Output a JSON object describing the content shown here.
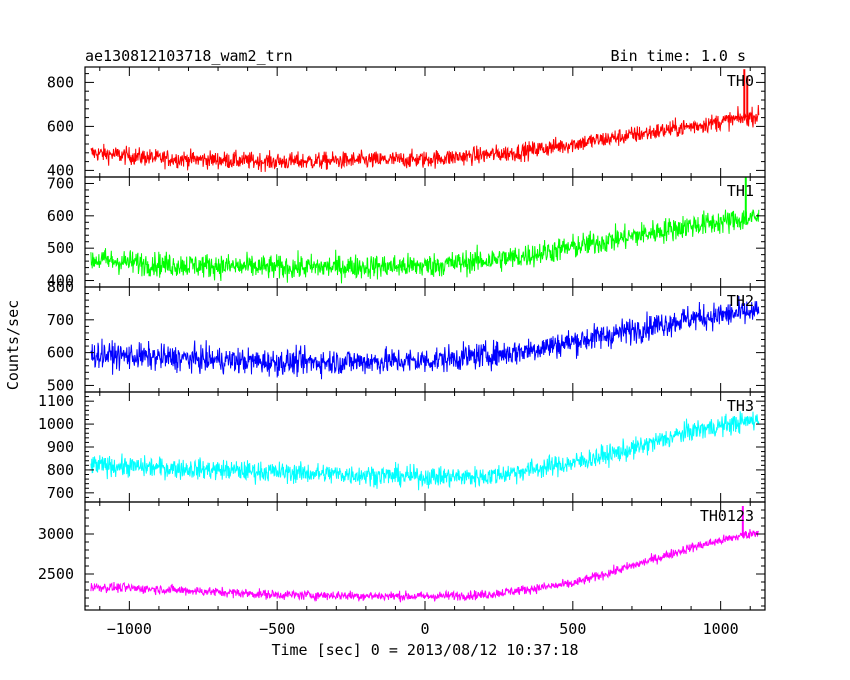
{
  "chart_data": {
    "type": "line",
    "title": "ae130812103718_wam2_trn",
    "subtitle": "Bin time: 1.0 s",
    "xlabel": "Time [sec] 0 = 2013/08/12 10:37:18",
    "ylabel": "Counts/sec",
    "xlim": [
      -1150,
      1150
    ],
    "x_ticks": [
      -1000,
      -500,
      0,
      500,
      1000
    ],
    "x_tick_labels": [
      "−1000",
      "−500",
      "0",
      "500",
      "1000"
    ],
    "x_data_range": [
      -1130,
      1130
    ],
    "grid": false,
    "panels": [
      {
        "name": "TH0",
        "color": "#ff0000",
        "ylim": [
          370,
          870
        ],
        "ticks": [
          400,
          600,
          800
        ],
        "tick_labels": [
          "400",
          "600",
          "800"
        ],
        "trend": [
          [
            -1130,
            480
          ],
          [
            -900,
            455
          ],
          [
            -500,
            440
          ],
          [
            0,
            450
          ],
          [
            300,
            480
          ],
          [
            600,
            540
          ],
          [
            900,
            600
          ],
          [
            1130,
            650
          ]
        ],
        "noise": 40,
        "spikes": [
          [
            1080,
            860
          ],
          [
            1090,
            830
          ]
        ]
      },
      {
        "name": "TH1",
        "color": "#00ff00",
        "ylim": [
          380,
          720
        ],
        "ticks": [
          400,
          500,
          600,
          700
        ],
        "tick_labels": [
          "400",
          "500",
          "600",
          "700"
        ],
        "trend": [
          [
            -1130,
            465
          ],
          [
            -900,
            450
          ],
          [
            -500,
            440
          ],
          [
            0,
            445
          ],
          [
            300,
            470
          ],
          [
            600,
            520
          ],
          [
            900,
            570
          ],
          [
            1130,
            595
          ]
        ],
        "noise": 38,
        "spikes": [
          [
            1085,
            725
          ]
        ]
      },
      {
        "name": "TH2",
        "color": "#0000ff",
        "ylim": [
          480,
          800
        ],
        "ticks": [
          500,
          600,
          700,
          800
        ],
        "tick_labels": [
          "500",
          "600",
          "700",
          "800"
        ],
        "trend": [
          [
            -1130,
            595
          ],
          [
            -900,
            585
          ],
          [
            -500,
            570
          ],
          [
            0,
            575
          ],
          [
            300,
            600
          ],
          [
            600,
            650
          ],
          [
            900,
            705
          ],
          [
            1130,
            725
          ]
        ],
        "noise": 40,
        "spikes": []
      },
      {
        "name": "TH3",
        "color": "#00ffff",
        "ylim": [
          660,
          1140
        ],
        "ticks": [
          700,
          800,
          900,
          1000,
          1100
        ],
        "tick_labels": [
          "700",
          "800",
          "900",
          "1000",
          "1100"
        ],
        "trend": [
          [
            -1130,
            820
          ],
          [
            -900,
            810
          ],
          [
            -500,
            790
          ],
          [
            0,
            770
          ],
          [
            200,
            770
          ],
          [
            500,
            830
          ],
          [
            700,
            890
          ],
          [
            900,
            970
          ],
          [
            1130,
            1020
          ]
        ],
        "noise": 45,
        "spikes": []
      },
      {
        "name": "TH0123",
        "color": "#ff00ff",
        "ylim": [
          2050,
          3400
        ],
        "ticks": [
          2500,
          3000
        ],
        "tick_labels": [
          "2500",
          "3000"
        ],
        "trend": [
          [
            -1130,
            2340
          ],
          [
            -900,
            2310
          ],
          [
            -500,
            2240
          ],
          [
            0,
            2220
          ],
          [
            200,
            2240
          ],
          [
            500,
            2380
          ],
          [
            700,
            2600
          ],
          [
            900,
            2830
          ],
          [
            1130,
            3030
          ]
        ],
        "noise": 60,
        "spikes": [
          [
            1075,
            3350
          ]
        ]
      }
    ]
  }
}
